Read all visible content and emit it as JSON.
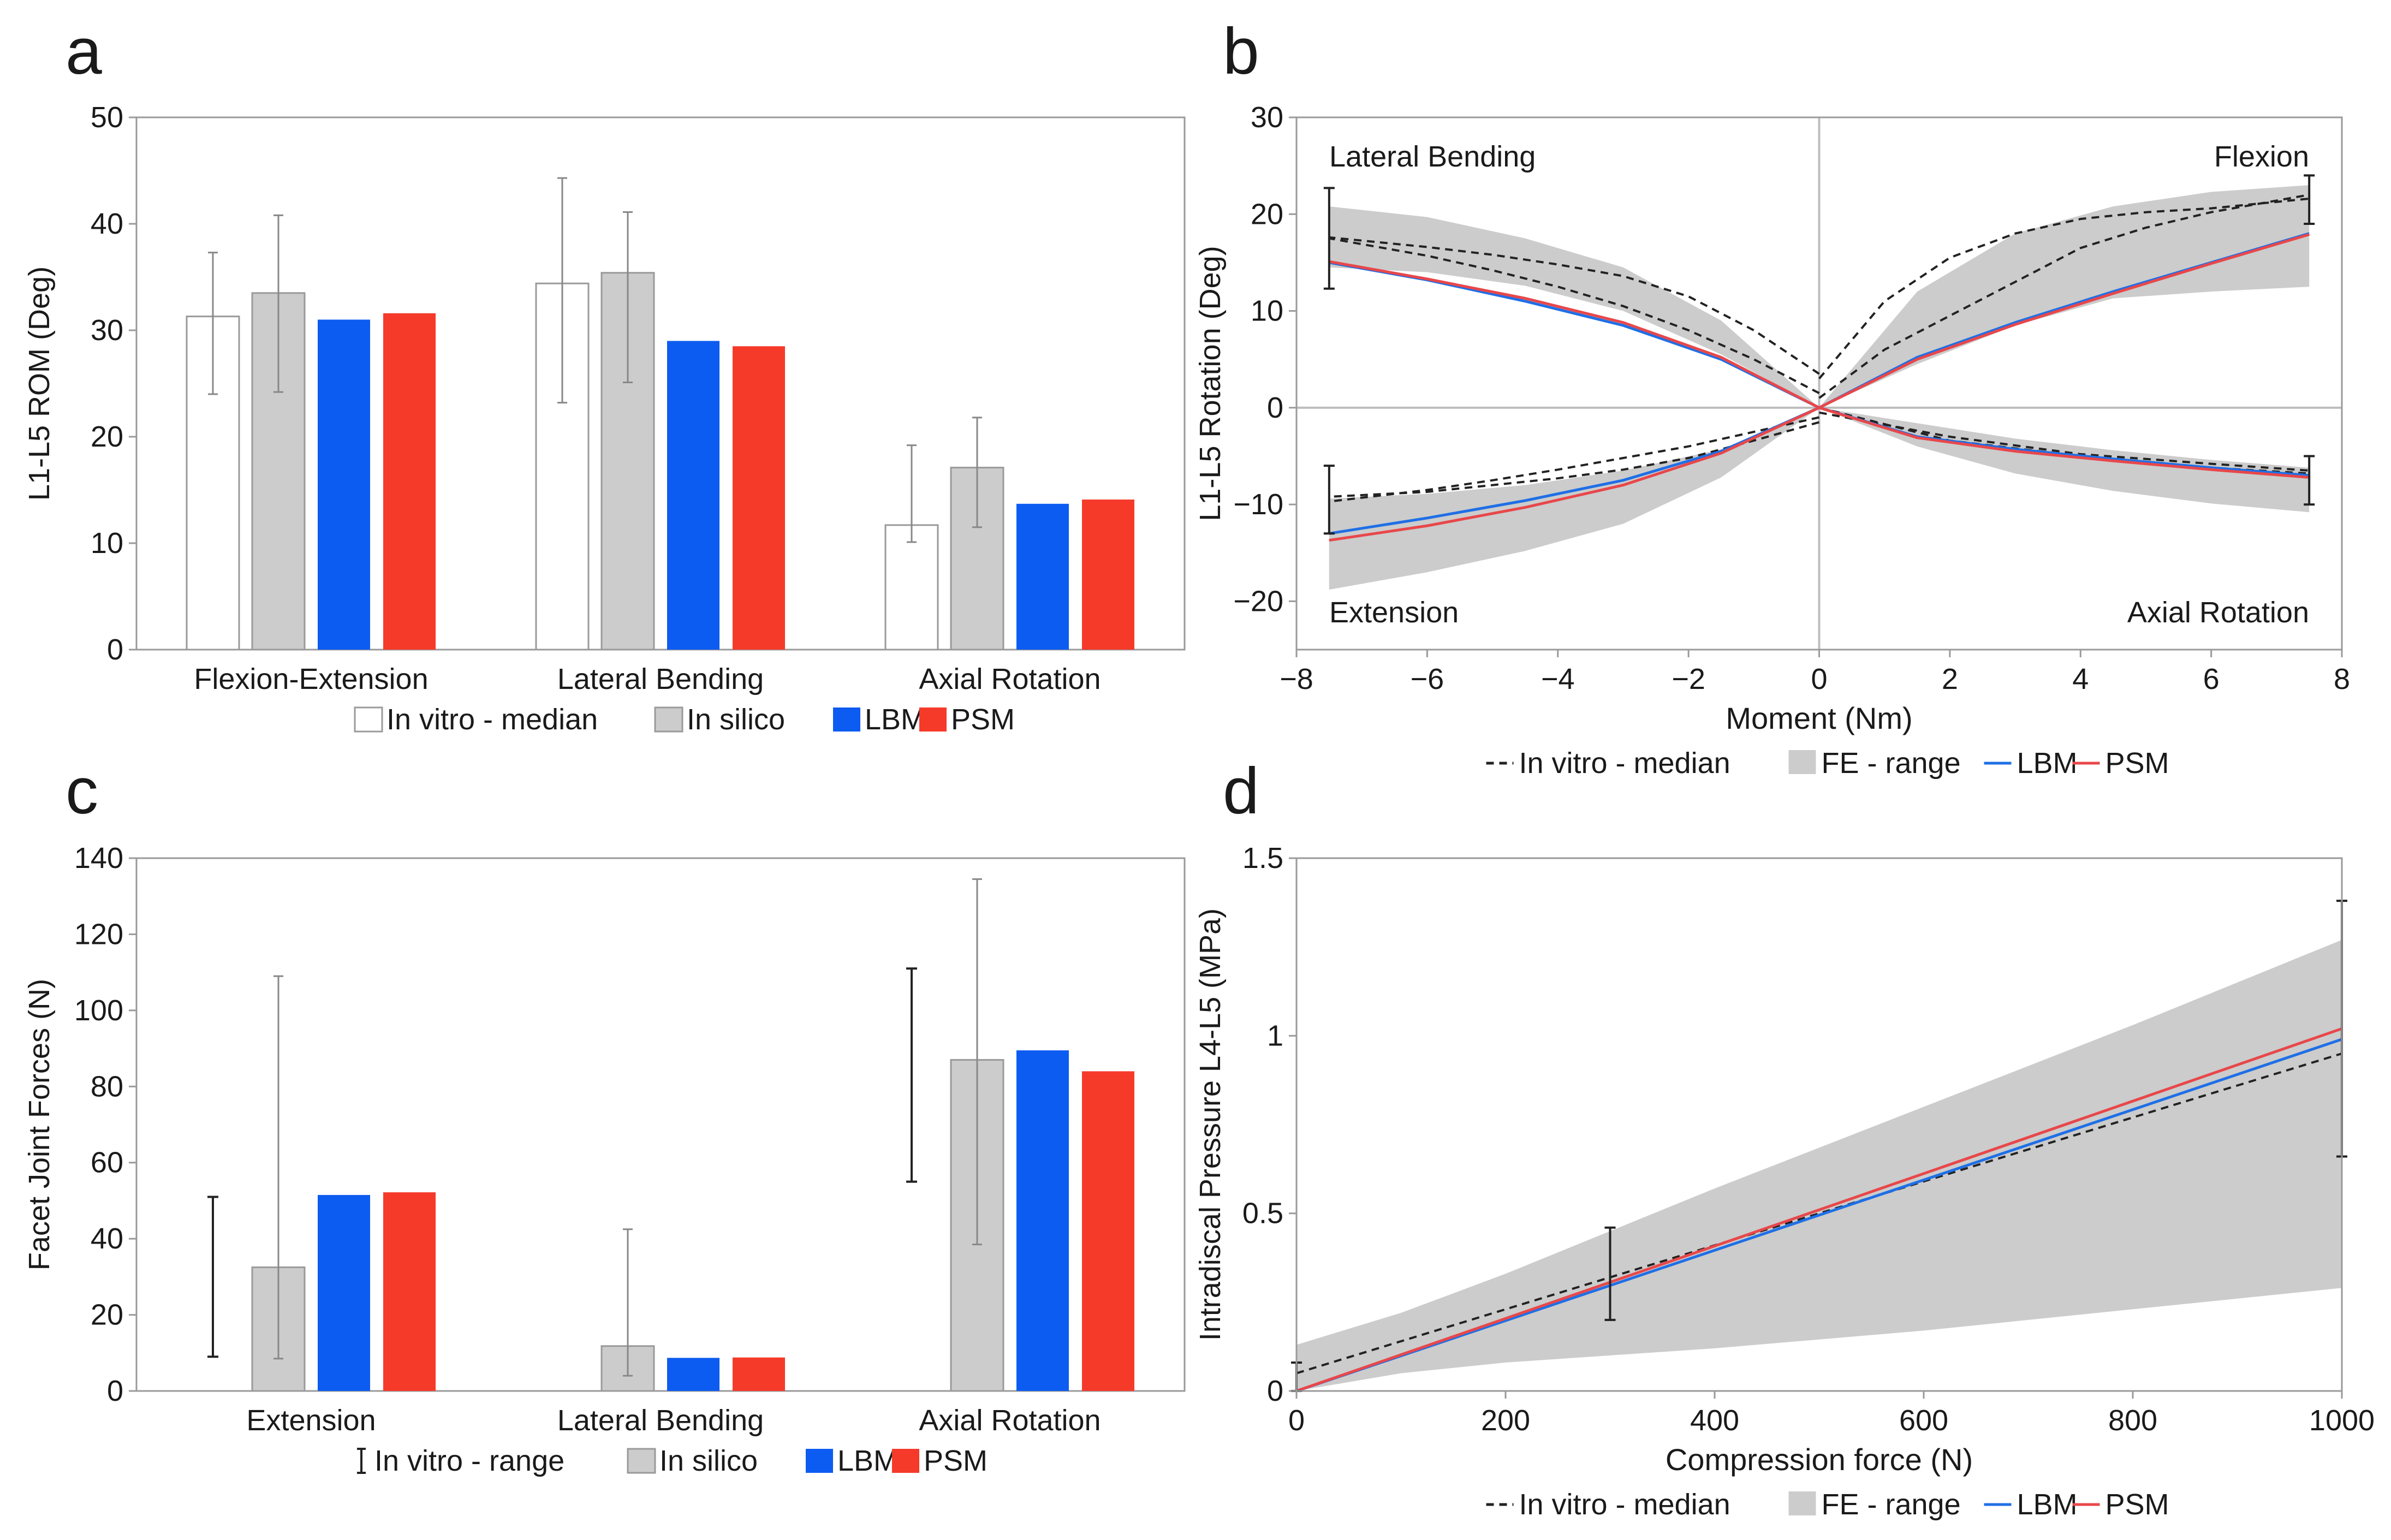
{
  "figure": {
    "panel_labels": [
      "a",
      "b",
      "c",
      "d"
    ]
  },
  "chart_data": [
    {
      "panel": "a",
      "type": "bar",
      "title": "",
      "xlabel": "",
      "ylabel": "L1-L5 ROM (Deg)",
      "ylim": [
        0,
        50
      ],
      "yticks": [
        0,
        10,
        20,
        30,
        40,
        50
      ],
      "grid": false,
      "legend_position": "bottom",
      "categories": [
        "Flexion-Extension",
        "Lateral Bending",
        "Axial Rotation"
      ],
      "series": [
        {
          "name": "In vitro - median",
          "color": "#ffffff",
          "stroke": "#9a9a9a",
          "values": [
            31.3,
            34.4,
            11.7
          ],
          "error": [
            [
              24.0,
              37.3
            ],
            [
              23.2,
              44.3
            ],
            [
              10.1,
              19.2
            ]
          ]
        },
        {
          "name": "In silico",
          "color": "#cccccc",
          "stroke": "#9a9a9a",
          "values": [
            33.5,
            35.4,
            17.1
          ],
          "error": [
            [
              24.2,
              40.8
            ],
            [
              25.1,
              41.1
            ],
            [
              11.5,
              21.8
            ]
          ]
        },
        {
          "name": "LBM",
          "color": "#0d5cf2",
          "values": [
            31.0,
            29.0,
            13.7
          ]
        },
        {
          "name": "PSM",
          "color": "#f53a2a",
          "values": [
            31.6,
            28.5,
            14.1
          ]
        }
      ]
    },
    {
      "panel": "b",
      "type": "line",
      "title": "",
      "xlabel": "Moment (Nm)",
      "ylabel": "L1-L5 Rotation (Deg)",
      "xlim": [
        -8,
        8
      ],
      "ylim": [
        -25,
        30
      ],
      "xticks": [
        -8,
        -6,
        -4,
        -2,
        0,
        2,
        4,
        6,
        8
      ],
      "xtick_labels": [
        "−8",
        "−6",
        "−4",
        "−2",
        "0",
        "2",
        "4",
        "6",
        "8"
      ],
      "yticks": [
        -20,
        -10,
        0,
        10,
        20,
        30
      ],
      "ytick_labels": [
        "−20",
        "−10",
        "0",
        "10",
        "20",
        "30"
      ],
      "grid": false,
      "legend_position": "bottom",
      "annotations": [
        "Lateral Bending",
        "Flexion",
        "Extension",
        "Axial Rotation"
      ],
      "legend": [
        {
          "name": "In vitro - median",
          "style": "dashed",
          "color": "#222222"
        },
        {
          "name": "FE - range",
          "style": "band",
          "color": "#cccccc"
        },
        {
          "name": "LBM",
          "style": "solid",
          "color": "#1f6fe6"
        },
        {
          "name": "PSM",
          "style": "solid",
          "color": "#e8474a"
        }
      ],
      "x": [
        0,
        1.5,
        3,
        4.5,
        6,
        7.5
      ],
      "bands": [
        {
          "name": "Flexion",
          "lower": [
            0,
            4.5,
            8.5,
            11.3,
            12.0,
            12.5
          ],
          "upper": [
            0,
            12.0,
            18.0,
            20.8,
            22.3,
            23.0
          ]
        },
        {
          "name": "Axial Rotation",
          "lower": [
            0,
            -4.0,
            -6.8,
            -8.6,
            -9.9,
            -10.8
          ],
          "upper": [
            0,
            -1.6,
            -3.2,
            -4.4,
            -5.4,
            -6.2
          ]
        },
        {
          "name": "Lateral Bending",
          "lower": [
            0,
            5.5,
            10.0,
            12.6,
            14.0,
            14.5
          ],
          "upper": [
            0,
            9.0,
            14.5,
            17.5,
            19.7,
            20.8
          ]
        },
        {
          "name": "Extension",
          "lower": [
            0,
            -7.2,
            -12.0,
            -14.8,
            -17.0,
            -18.8
          ],
          "upper": [
            0,
            -4.3,
            -6.5,
            -8.0,
            -8.9,
            -9.4
          ]
        }
      ],
      "series": [
        {
          "name": "In vitro - median Flexion",
          "style": "dashed",
          "color": "#222222",
          "x": [
            0,
            1,
            2,
            3,
            4,
            5,
            6,
            7.5
          ],
          "y": [
            1.0,
            6.0,
            9.5,
            13.0,
            16.5,
            18.6,
            20.2,
            22.0
          ]
        },
        {
          "name": "In vitro - median Flexion (upper)",
          "style": "dashed",
          "color": "#222222",
          "x": [
            0,
            1,
            2,
            3,
            4,
            5,
            6,
            7.5
          ],
          "y": [
            3.0,
            11.0,
            15.5,
            18.0,
            19.5,
            20.2,
            20.6,
            21.6
          ]
        },
        {
          "name": "In vitro - median Axial Rotation",
          "style": "dashed",
          "color": "#222222",
          "x": [
            0,
            2,
            4,
            6,
            7.5
          ],
          "y": [
            -0.5,
            -3.0,
            -4.8,
            -5.8,
            -6.5
          ]
        },
        {
          "name": "In vitro - median Axial Rotation (lower)",
          "style": "dashed",
          "color": "#222222",
          "x": [
            0,
            2,
            4,
            6,
            7.5
          ],
          "y": [
            0,
            -3.4,
            -5.0,
            -6.2,
            -6.8
          ]
        },
        {
          "name": "In vitro - median Lateral Bending",
          "style": "dashed",
          "color": "#222222",
          "x": [
            0,
            -1,
            -2,
            -3,
            -4,
            -5,
            -6,
            -7.5
          ],
          "y": [
            3.5,
            8.0,
            11.5,
            13.6,
            14.8,
            15.8,
            16.6,
            17.6
          ]
        },
        {
          "name": "In vitro - median Lateral Bending (lower)",
          "style": "dashed",
          "color": "#222222",
          "x": [
            0,
            -1,
            -2,
            -3,
            -4,
            -5,
            -6,
            -7.5
          ],
          "y": [
            1.5,
            5.0,
            8.0,
            10.5,
            12.5,
            14.2,
            15.7,
            17.5
          ]
        },
        {
          "name": "In vitro - median Extension",
          "style": "dashed",
          "color": "#222222",
          "x": [
            0,
            -1,
            -2,
            -3,
            -4,
            -5,
            -6,
            -7.5
          ],
          "y": [
            -1.0,
            -2.5,
            -4.0,
            -5.2,
            -6.4,
            -7.5,
            -8.5,
            -9.7
          ]
        },
        {
          "name": "In vitro - median Extension (upper)",
          "style": "dashed",
          "color": "#222222",
          "x": [
            0,
            -1,
            -2,
            -3,
            -4,
            -5,
            -6,
            -7.5
          ],
          "y": [
            -1.5,
            -3.4,
            -5.2,
            -6.4,
            -7.3,
            -8.0,
            -8.7,
            -9.2
          ]
        },
        {
          "name": "LBM Flexion",
          "style": "solid",
          "color": "#1f6fe6",
          "x": [
            0,
            1.5,
            3,
            4.5,
            6,
            7.5
          ],
          "y": [
            0,
            5.2,
            8.8,
            12.0,
            15.0,
            18.0
          ]
        },
        {
          "name": "PSM Flexion",
          "style": "solid",
          "color": "#e8474a",
          "x": [
            0,
            1.5,
            3,
            4.5,
            6,
            7.5
          ],
          "y": [
            0,
            5.0,
            8.6,
            11.8,
            14.9,
            17.9
          ]
        },
        {
          "name": "LBM Axial Rotation",
          "style": "solid",
          "color": "#1f6fe6",
          "x": [
            0,
            1.5,
            3,
            4.5,
            6,
            7.5
          ],
          "y": [
            0,
            -3.0,
            -4.3,
            -5.3,
            -6.2,
            -7.0
          ]
        },
        {
          "name": "PSM Axial Rotation",
          "style": "solid",
          "color": "#e8474a",
          "x": [
            0,
            1.5,
            3,
            4.5,
            6,
            7.5
          ],
          "y": [
            0,
            -3.1,
            -4.5,
            -5.5,
            -6.4,
            -7.2
          ]
        },
        {
          "name": "LBM Lateral Bending",
          "style": "solid",
          "color": "#1f6fe6",
          "x": [
            0,
            -1.5,
            -3,
            -4.5,
            -6,
            -7.5
          ],
          "y": [
            0,
            5.0,
            8.5,
            11.0,
            13.2,
            15.0
          ]
        },
        {
          "name": "PSM Lateral Bending",
          "style": "solid",
          "color": "#e8474a",
          "x": [
            0,
            -1.5,
            -3,
            -4.5,
            -6,
            -7.5
          ],
          "y": [
            0,
            5.2,
            8.8,
            11.3,
            13.3,
            15.1
          ]
        },
        {
          "name": "LBM Extension",
          "style": "solid",
          "color": "#1f6fe6",
          "x": [
            0,
            -1.5,
            -3,
            -4.5,
            -6,
            -7.5
          ],
          "y": [
            0,
            -4.5,
            -7.5,
            -9.6,
            -11.4,
            -13.0
          ]
        },
        {
          "name": "PSM Extension",
          "style": "solid",
          "color": "#e8474a",
          "x": [
            0,
            -1.5,
            -3,
            -4.5,
            -6,
            -7.5
          ],
          "y": [
            0,
            -4.7,
            -8.0,
            -10.3,
            -12.2,
            -13.7
          ]
        }
      ],
      "error_bars": [
        {
          "x": 7.5,
          "low": 19.0,
          "high": 24.0
        },
        {
          "x": 7.5,
          "low": -10.0,
          "high": -5.0
        },
        {
          "x": -7.5,
          "low": 12.3,
          "high": 22.7
        },
        {
          "x": -7.5,
          "low": -13.0,
          "high": -6.0
        }
      ]
    },
    {
      "panel": "c",
      "type": "bar",
      "title": "",
      "xlabel": "",
      "ylabel": "Facet Joint Forces (N)",
      "ylim": [
        0,
        140
      ],
      "yticks": [
        0,
        20,
        40,
        60,
        80,
        100,
        120,
        140
      ],
      "grid": false,
      "legend_position": "bottom",
      "categories": [
        "Extension",
        "Lateral Bending",
        "Axial Rotation"
      ],
      "series": [
        {
          "name": "In vitro - range",
          "style": "range",
          "color": "#222222",
          "ranges": [
            [
              9,
              51
            ],
            null,
            [
              55,
              111
            ]
          ]
        },
        {
          "name": "In silico",
          "color": "#cccccc",
          "stroke": "#9a9a9a",
          "values": [
            32.5,
            11.8,
            87.0
          ],
          "error": [
            [
              8.5,
              109.0
            ],
            [
              4.0,
              42.5
            ],
            [
              38.5,
              134.5
            ]
          ]
        },
        {
          "name": "LBM",
          "color": "#0d5cf2",
          "values": [
            51.5,
            8.7,
            89.5
          ]
        },
        {
          "name": "PSM",
          "color": "#f53a2a",
          "values": [
            52.2,
            8.8,
            84.0
          ]
        }
      ]
    },
    {
      "panel": "d",
      "type": "line",
      "title": "",
      "xlabel": "Compression force (N)",
      "ylabel": "Intradiscal Pressure L4-L5 (MPa)",
      "xlim": [
        0,
        1000
      ],
      "ylim": [
        0,
        1.5
      ],
      "xticks": [
        0,
        200,
        400,
        600,
        800,
        1000
      ],
      "yticks": [
        0,
        0.5,
        1,
        1.5
      ],
      "grid": false,
      "legend_position": "bottom",
      "legend": [
        {
          "name": "In vitro - median",
          "style": "dashed",
          "color": "#222222"
        },
        {
          "name": "FE - range",
          "style": "band",
          "color": "#cccccc"
        },
        {
          "name": "LBM",
          "style": "solid",
          "color": "#1f6fe6"
        },
        {
          "name": "PSM",
          "style": "solid",
          "color": "#e8474a"
        }
      ],
      "band": {
        "x": [
          0,
          100,
          200,
          300,
          400,
          600,
          800,
          1000
        ],
        "lower": [
          0,
          0.05,
          0.08,
          0.1,
          0.12,
          0.17,
          0.23,
          0.29
        ],
        "upper": [
          0.13,
          0.22,
          0.33,
          0.45,
          0.57,
          0.8,
          1.03,
          1.27
        ]
      },
      "series": [
        {
          "name": "In vitro - median",
          "style": "dashed",
          "color": "#222222",
          "x": [
            0,
            300,
            1000
          ],
          "y": [
            0.05,
            0.32,
            0.95
          ]
        },
        {
          "name": "LBM",
          "style": "solid",
          "color": "#1f6fe6",
          "x": [
            0,
            1000
          ],
          "y": [
            0.0,
            0.99
          ]
        },
        {
          "name": "PSM",
          "style": "solid",
          "color": "#e8474a",
          "x": [
            0,
            1000
          ],
          "y": [
            0.0,
            1.02
          ]
        }
      ],
      "error_bars": [
        {
          "x": 0,
          "low": 0.0,
          "high": 0.08
        },
        {
          "x": 300,
          "low": 0.2,
          "high": 0.46
        },
        {
          "x": 1000,
          "low": 0.66,
          "high": 1.38
        }
      ]
    }
  ]
}
